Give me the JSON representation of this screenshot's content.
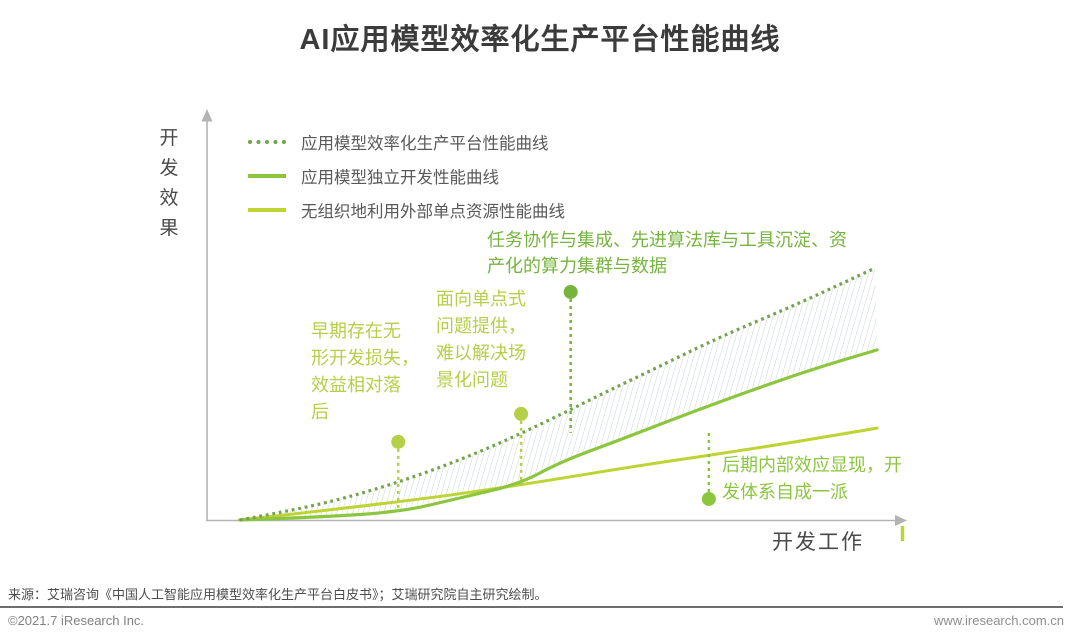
{
  "header": {
    "title": "AI应用模型效率化生产平台性能曲线"
  },
  "axes": {
    "y_label": "开\n发\n效\n果",
    "x_label": "开发工作"
  },
  "chart_data": {
    "type": "line",
    "title": "AI应用模型效率化生产平台性能曲线",
    "xlabel": "开发工作",
    "ylabel": "开发效果",
    "x_range": [
      0,
      100
    ],
    "y_range": [
      0,
      100
    ],
    "grid": false,
    "legend_position": "top-left-inside",
    "axis_color": "#b3b3b3",
    "axis_end_tick_color": "#bdd433",
    "series": [
      {
        "name": "应用模型效率化生产平台性能曲线",
        "style": "dotted",
        "color": "#74a24e",
        "points": [
          [
            4.7,
            0
          ],
          [
            13.3,
            2.7
          ],
          [
            21.9,
            6.4
          ],
          [
            30.5,
            11.1
          ],
          [
            39.1,
            16.8
          ],
          [
            47.7,
            23.5
          ],
          [
            56.3,
            30.9
          ],
          [
            64.9,
            38.0
          ],
          [
            73.5,
            45.2
          ],
          [
            85.0,
            53.6
          ],
          [
            95.7,
            62.2
          ]
        ]
      },
      {
        "name": "应用模型独立开发性能曲线",
        "style": "solid",
        "color": "#8cc63f",
        "points": [
          [
            4.7,
            0
          ],
          [
            16.2,
            0.7
          ],
          [
            27.7,
            2.0
          ],
          [
            36.2,
            5.4
          ],
          [
            44.8,
            8.9
          ],
          [
            50.6,
            14.3
          ],
          [
            59.2,
            19.8
          ],
          [
            70.6,
            27.4
          ],
          [
            85.0,
            36.3
          ],
          [
            96.0,
            42.0
          ]
        ]
      },
      {
        "name": "无组织地利用外部单点资源性能曲线",
        "style": "solid",
        "color": "#bdd433",
        "points": [
          [
            4.7,
            0
          ],
          [
            27.7,
            4.4
          ],
          [
            44.8,
            8.6
          ],
          [
            61.3,
            13.3
          ],
          [
            79.2,
            17.8
          ],
          [
            96.0,
            22.7
          ]
        ]
      }
    ],
    "band": {
      "between": [
        "应用模型效率化生产平台性能曲线",
        "应用模型独立开发性能曲线"
      ],
      "fill": "diagonal-hatch",
      "hatch_color": "#cdd5da"
    },
    "annotations": [
      {
        "text": "任务协作与集成、先进算法库与工具沉淀、资\n产化的算力集群与数据",
        "color": "#76b43e",
        "x": 52.1,
        "dot_y": 56.3,
        "leader_to": 21.5
      },
      {
        "text": "面向单点式\n问题提供，\n难以解决场\n景化问题",
        "color": "#b6cf48",
        "x": 45.0,
        "dot_y": 26.2,
        "leader_to": 8.4
      },
      {
        "text": "早期存在无\n形开发损失，\n效益相对落\n后",
        "color": "#b6cf48",
        "x": 27.4,
        "dot_y": 19.3,
        "leader_to": 2.0
      },
      {
        "text": "后期内部效应显现，开\n发体系自成一派",
        "color": "#8cc63f",
        "x": 71.9,
        "dot_y": 5.2,
        "leader_to": 21.7
      }
    ]
  },
  "footer": {
    "source": "来源：艾瑞咨询《中国人工智能应用模型效率化生产平台白皮书》；艾瑞研究院自主研究绘制。",
    "copyright": "©2021.7 iResearch Inc.",
    "website": "www.iresearch.com.cn"
  }
}
